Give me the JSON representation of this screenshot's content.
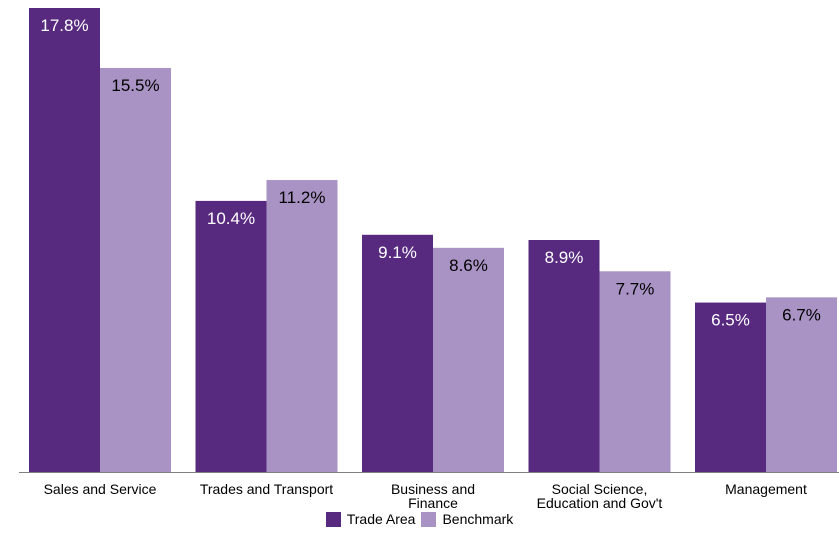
{
  "chart_data": {
    "type": "bar",
    "categories": [
      [
        "Sales and Service"
      ],
      [
        "Trades and Transport"
      ],
      [
        "Business and",
        "Finance"
      ],
      [
        "Social Science,",
        "Education and Gov't"
      ],
      [
        "Management"
      ]
    ],
    "series": [
      {
        "name": "Trade Area",
        "color": "#582a7f",
        "values": [
          17.8,
          10.4,
          9.1,
          8.9,
          6.5
        ],
        "labels": [
          "17.8%",
          "10.4%",
          "9.1%",
          "8.9%",
          "6.5%"
        ],
        "label_color": "#ffffff"
      },
      {
        "name": "Benchmark",
        "color": "#a993c4",
        "values": [
          15.5,
          11.2,
          8.6,
          7.7,
          6.7
        ],
        "labels": [
          "15.5%",
          "11.2%",
          "8.6%",
          "7.7%",
          "6.7%"
        ],
        "label_color": "#000000"
      }
    ],
    "title": "",
    "xlabel": "",
    "ylabel": "",
    "ylim": [
      0,
      17.8
    ],
    "grid": false,
    "legend_position": "bottom-center"
  }
}
